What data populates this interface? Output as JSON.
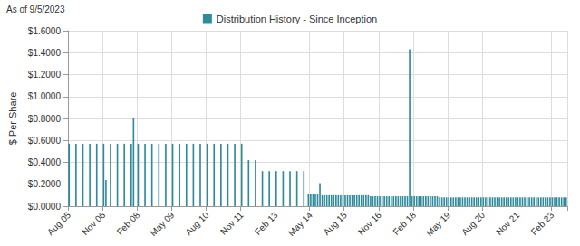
{
  "chart_data": {
    "type": "bar",
    "subtitle": "As of 9/5/2023",
    "y_label": "$ Per Share",
    "legend": "top",
    "grid": true,
    "ylim": [
      0,
      1.6
    ],
    "yticks": [
      {
        "value": 0,
        "label": "$0.0000"
      },
      {
        "value": 0.2,
        "label": "$0.2000"
      },
      {
        "value": 0.4,
        "label": "$0.4000"
      },
      {
        "value": 0.6,
        "label": "$0.6000"
      },
      {
        "value": 0.8,
        "label": "$0.8000"
      },
      {
        "value": 1.0,
        "label": "$1.0000"
      },
      {
        "value": 1.2,
        "label": "$1.2000"
      },
      {
        "value": 1.4,
        "label": "$1.4000"
      },
      {
        "value": 1.6,
        "label": "$1.6000"
      }
    ],
    "categories": [
      "Aug 05",
      null,
      null,
      null,
      null,
      null,
      null,
      null,
      null,
      null,
      null,
      null,
      null,
      null,
      null,
      "Nov 06",
      null,
      null,
      null,
      null,
      null,
      null,
      null,
      null,
      null,
      null,
      null,
      null,
      null,
      null,
      "Feb 08",
      null,
      null,
      null,
      null,
      null,
      null,
      null,
      null,
      null,
      null,
      null,
      null,
      null,
      null,
      "May 09",
      null,
      null,
      null,
      null,
      null,
      null,
      null,
      null,
      null,
      null,
      null,
      null,
      null,
      null,
      "Aug 10",
      null,
      null,
      null,
      null,
      null,
      null,
      null,
      null,
      null,
      null,
      null,
      null,
      null,
      null,
      "Nov 11",
      null,
      null,
      null,
      null,
      null,
      null,
      null,
      null,
      null,
      null,
      null,
      null,
      null,
      null,
      "Feb 13",
      null,
      null,
      null,
      null,
      null,
      null,
      null,
      null,
      null,
      null,
      null,
      null,
      null,
      null,
      "May 14",
      null,
      null,
      null,
      null,
      null,
      null,
      null,
      null,
      null,
      null,
      null,
      null,
      null,
      null,
      "Aug 15",
      null,
      null,
      null,
      null,
      null,
      null,
      null,
      null,
      null,
      null,
      null,
      null,
      null,
      null,
      "Nov 16",
      null,
      null,
      null,
      null,
      null,
      null,
      null,
      null,
      null,
      null,
      null,
      null,
      null,
      null,
      "Feb 18",
      null,
      null,
      null,
      null,
      null,
      null,
      null,
      null,
      null,
      null,
      null,
      null,
      null,
      null,
      "May 19",
      null,
      null,
      null,
      null,
      null,
      null,
      null,
      null,
      null,
      null,
      null,
      null,
      null,
      null,
      "Aug 20",
      null,
      null,
      null,
      null,
      null,
      null,
      null,
      null,
      null,
      null,
      null,
      null,
      null,
      null,
      "Nov 21",
      null,
      null,
      null,
      null,
      null,
      null,
      null,
      null,
      null,
      null,
      null,
      null,
      null,
      null,
      "Feb 23",
      null,
      null,
      null,
      null,
      null,
      null
    ],
    "series": [
      {
        "name": "Distribution History - Since Inception",
        "color": "#2f8a9c",
        "values": [
          0.57,
          null,
          null,
          0.57,
          null,
          null,
          0.57,
          null,
          null,
          0.57,
          null,
          null,
          0.57,
          null,
          null,
          0.57,
          0.24,
          null,
          0.57,
          null,
          null,
          0.57,
          null,
          null,
          0.57,
          null,
          null,
          0.57,
          0.8,
          null,
          0.57,
          null,
          null,
          0.57,
          null,
          null,
          0.57,
          null,
          null,
          0.57,
          null,
          null,
          0.57,
          null,
          null,
          0.57,
          null,
          null,
          0.57,
          null,
          null,
          0.57,
          null,
          null,
          0.57,
          null,
          null,
          0.57,
          null,
          null,
          0.57,
          null,
          null,
          0.57,
          null,
          null,
          0.57,
          null,
          null,
          0.57,
          null,
          null,
          0.57,
          null,
          null,
          0.57,
          null,
          null,
          0.42,
          null,
          null,
          0.42,
          null,
          null,
          0.32,
          null,
          null,
          0.32,
          null,
          null,
          0.32,
          null,
          null,
          0.32,
          null,
          null,
          0.32,
          null,
          null,
          0.32,
          null,
          null,
          0.32,
          null,
          0.11,
          0.11,
          0.11,
          0.11,
          0.11,
          0.21,
          0.1,
          0.1,
          0.1,
          0.1,
          0.1,
          0.1,
          0.1,
          0.1,
          0.1,
          0.1,
          0.1,
          0.1,
          0.1,
          0.1,
          0.1,
          0.1,
          0.1,
          0.1,
          0.1,
          0.1,
          0.1,
          0.09,
          0.09,
          0.09,
          0.09,
          0.09,
          0.09,
          0.09,
          0.09,
          0.09,
          0.09,
          0.09,
          0.09,
          0.09,
          0.09,
          0.09,
          0.09,
          0.09,
          1.43,
          0.09,
          0.09,
          0.09,
          0.09,
          0.09,
          0.09,
          0.09,
          0.09,
          0.09,
          0.09,
          0.09,
          0.09,
          0.08,
          0.08,
          0.08,
          0.08,
          0.08,
          0.08,
          0.08,
          0.08,
          0.08,
          0.08,
          0.08,
          0.08,
          0.08,
          0.08,
          0.08,
          0.08,
          0.08,
          0.08,
          0.08,
          0.08,
          0.08,
          0.08,
          0.08,
          0.08,
          0.08,
          0.08,
          0.08,
          0.08,
          0.08,
          0.08,
          0.08,
          0.08,
          0.08,
          0.08,
          0.08,
          0.08,
          0.08,
          0.08,
          0.08,
          0.08,
          0.08,
          0.08,
          0.08,
          0.08,
          0.08,
          0.08,
          0.08,
          0.08,
          0.08,
          0.08,
          0.08,
          0.08,
          0.08,
          0.08,
          0.08,
          0.08
        ]
      }
    ]
  }
}
